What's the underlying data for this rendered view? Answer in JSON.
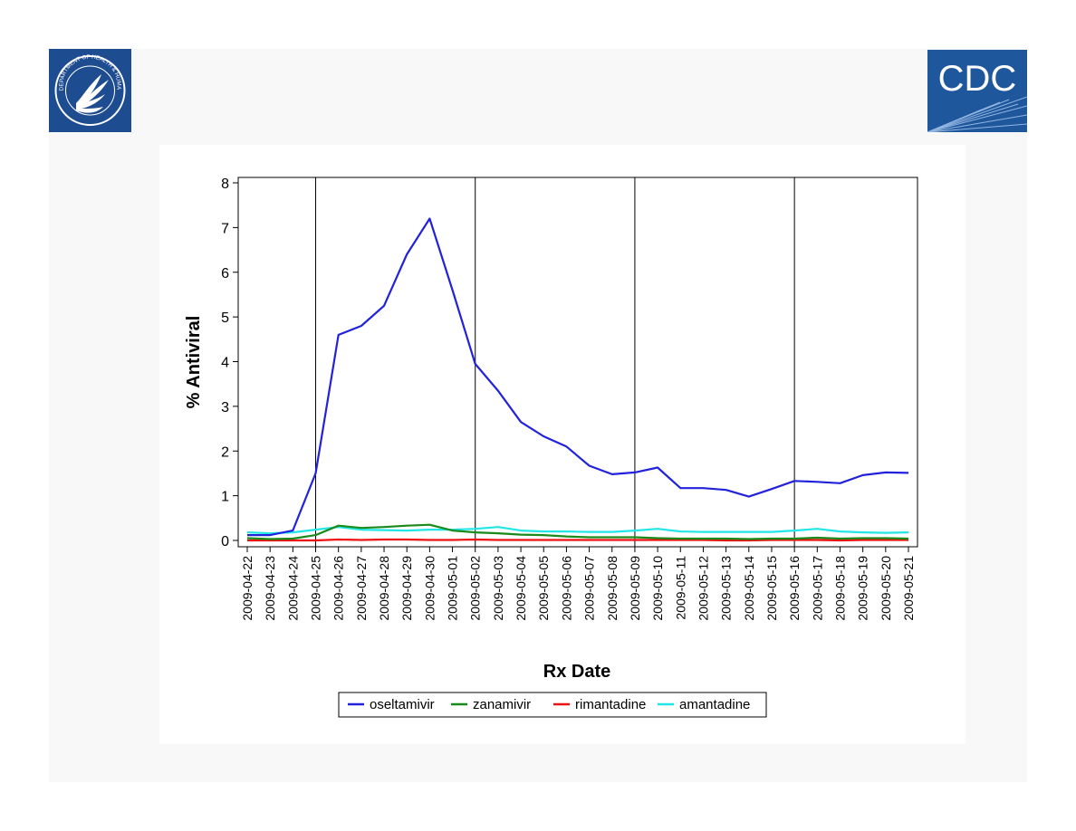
{
  "logos": {
    "left": {
      "name": "HHS department seal",
      "text": "DEPARTMENT OF HEALTH & HUMAN SERVICES • USA"
    },
    "right": {
      "name": "CDC logo",
      "text": "CDC"
    }
  },
  "colors": {
    "slide_bg": "#f8f8f8",
    "hhs_blue": "#1e4c91",
    "cdc_blue": "#1f579c",
    "oseltamivir": "#2222dd",
    "zanamivir": "#1a8a1a",
    "rimantadine": "#ee1111",
    "amantadine": "#22e6e6"
  },
  "chart_data": {
    "type": "line",
    "title": "",
    "xlabel": "Rx Date",
    "ylabel": "% Antiviral",
    "ylim": [
      0,
      8
    ],
    "yticks": [
      0,
      1,
      2,
      3,
      4,
      5,
      6,
      7,
      8
    ],
    "grid": false,
    "reference_lines_at": [
      "2009-04-25",
      "2009-05-02",
      "2009-05-09",
      "2009-05-16"
    ],
    "categories": [
      "2009-04-22",
      "2009-04-23",
      "2009-04-24",
      "2009-04-25",
      "2009-04-26",
      "2009-04-27",
      "2009-04-28",
      "2009-04-29",
      "2009-04-30",
      "2009-05-01",
      "2009-05-02",
      "2009-05-03",
      "2009-05-04",
      "2009-05-05",
      "2009-05-06",
      "2009-05-07",
      "2009-05-08",
      "2009-05-09",
      "2009-05-10",
      "2009-05-11",
      "2009-05-12",
      "2009-05-13",
      "2009-05-14",
      "2009-05-15",
      "2009-05-16",
      "2009-05-17",
      "2009-05-18",
      "2009-05-19",
      "2009-05-20",
      "2009-05-21"
    ],
    "series": [
      {
        "name": "oseltamivir",
        "color": "#2222dd",
        "values": [
          0.12,
          0.12,
          0.22,
          1.5,
          4.6,
          4.8,
          5.25,
          6.4,
          7.2,
          5.6,
          3.95,
          3.35,
          2.65,
          2.33,
          2.1,
          1.67,
          1.48,
          1.52,
          1.63,
          1.17,
          1.17,
          1.13,
          0.98,
          1.15,
          1.33,
          1.31,
          1.28,
          1.46,
          1.52,
          1.51
        ]
      },
      {
        "name": "zanamivir",
        "color": "#1a8a1a",
        "values": [
          0.05,
          0.03,
          0.04,
          0.12,
          0.33,
          0.28,
          0.3,
          0.33,
          0.35,
          0.22,
          0.18,
          0.16,
          0.13,
          0.12,
          0.09,
          0.07,
          0.07,
          0.07,
          0.05,
          0.04,
          0.04,
          0.04,
          0.03,
          0.04,
          0.04,
          0.06,
          0.04,
          0.05,
          0.05,
          0.04
        ]
      },
      {
        "name": "rimantadine",
        "color": "#ee1111",
        "values": [
          0.0,
          0.0,
          0.0,
          0.0,
          0.02,
          0.01,
          0.02,
          0.02,
          0.01,
          0.01,
          0.02,
          0.01,
          0.01,
          0.01,
          0.01,
          0.01,
          0.01,
          0.01,
          0.01,
          0.01,
          0.01,
          0.0,
          0.0,
          0.01,
          0.01,
          0.01,
          0.0,
          0.01,
          0.01,
          0.01
        ]
      },
      {
        "name": "amantadine",
        "color": "#22e6e6",
        "values": [
          0.18,
          0.16,
          0.18,
          0.24,
          0.3,
          0.24,
          0.23,
          0.22,
          0.24,
          0.24,
          0.26,
          0.3,
          0.22,
          0.2,
          0.2,
          0.19,
          0.19,
          0.22,
          0.26,
          0.2,
          0.19,
          0.19,
          0.19,
          0.19,
          0.22,
          0.26,
          0.2,
          0.18,
          0.17,
          0.18
        ]
      }
    ],
    "legend": {
      "placement": "bottom",
      "entries": [
        "oseltamivir",
        "zanamivir",
        "rimantadine",
        "amantadine"
      ]
    }
  }
}
